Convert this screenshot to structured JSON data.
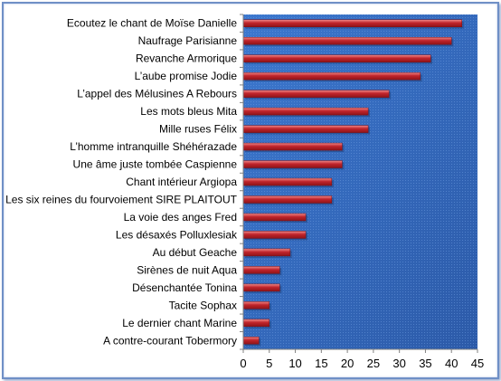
{
  "chart_data": {
    "type": "bar",
    "orientation": "horizontal",
    "categories": [
      "Ecoutez le chant de Moïse Danielle",
      "Naufrage Parisianne",
      "Revanche Armorique",
      "L’aube promise Jodie",
      "L’appel des Mélusines A Rebours",
      "Les mots bleus Mita",
      "Mille ruses Félix",
      "L’homme intranquille  Shéhérazade",
      "Une âme juste tombée Caspienne",
      "Chant intérieur Argiopa",
      "Les six reines du fourvoiement SIRE PLAITOUT",
      "La voie des anges Fred",
      "Les désaxés Polluxlesiak",
      "Au début Geache",
      "Sirènes de nuit Aqua",
      "Désenchantée Tonina",
      "Tacite Sophax",
      "Le dernier chant Marine",
      "A contre-courant Tobermory"
    ],
    "values": [
      42,
      40,
      36,
      34,
      28,
      24,
      24,
      19,
      19,
      17,
      17,
      12,
      12,
      9,
      7,
      7,
      5,
      5,
      3
    ],
    "xlim": [
      0,
      45
    ],
    "xticks": [
      0,
      5,
      10,
      15,
      20,
      25,
      30,
      35,
      40,
      45
    ],
    "xtick_labels": [
      "0",
      "5",
      "10",
      "15",
      "20",
      "25",
      "30",
      "35",
      "40",
      "45"
    ],
    "title": "",
    "xlabel": "",
    "ylabel": "",
    "grid": false,
    "legend": "none",
    "colors": {
      "plot_background": "#3a6fc4",
      "bar_fill": "#c0242b",
      "bar_highlight": "#f08a8a",
      "axis": "#808080"
    }
  }
}
